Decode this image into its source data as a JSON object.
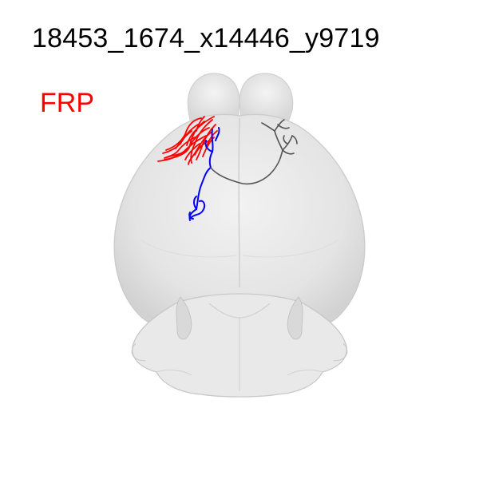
{
  "figure": {
    "title": "18453_1674_x14446_y9719",
    "region_label": "FRP",
    "colors": {
      "background": "#ffffff",
      "title": "#000000",
      "region_label": "#ff0000",
      "brain_fill": "#e6e6e6",
      "brain_edge": "#c9c9c9",
      "axon_red": "#ff0000",
      "dendrite_blue": "#0000ff",
      "axon_gray": "#555555"
    },
    "view": "dorsal view of mouse brain with neuron morphology"
  }
}
